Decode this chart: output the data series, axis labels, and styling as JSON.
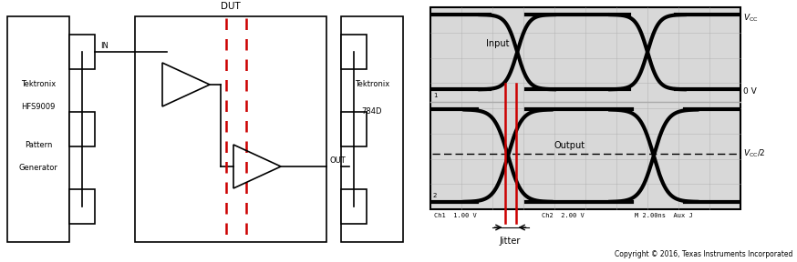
{
  "bg_color": "#ffffff",
  "copyright_text": "Copyright © 2016, Texas Instruments Incorporated",
  "line_color": "#000000",
  "red_line_color": "#cc0000",
  "grid_color": "#aaaaaa",
  "scope_bg": "#d8d8d8",
  "left_label1": "Tektronix",
  "left_label2": "HFS9009",
  "left_label3": "Pattern",
  "left_label4": "Generator",
  "right_label1": "Tektronix",
  "right_label2": "784D",
  "dut_label": "DUT",
  "in_label": "IN",
  "out_label": "OUT",
  "input_label": "Input",
  "output_label": "Output",
  "jitter_label": "Jitter",
  "ch1_label": "Ch1   1.00 V",
  "ch2_label": "Ch2   2.00 V",
  "time_label": "M 2.00ns  Aux J",
  "vcc_label": "V",
  "vcc_sub": "CC",
  "ov_label": "0 V",
  "vcc2_label": "V",
  "vcc2_sub": "CC",
  "vcc2_div": "/2"
}
